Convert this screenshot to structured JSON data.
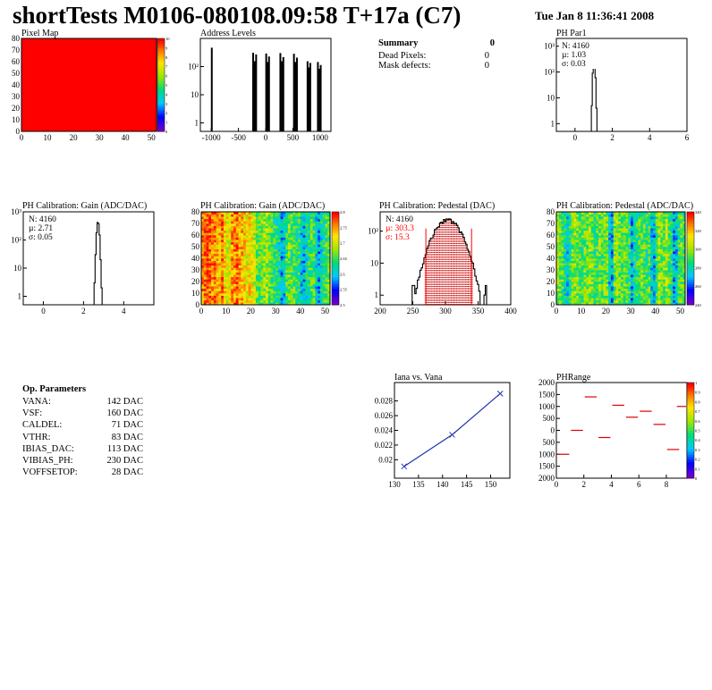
{
  "header": {
    "title": "shortTests M0106-080108.09:58 T+17a (C7)",
    "date": "Tue Jan  8 11:36:41 2008"
  },
  "colors": {
    "line": "#000000",
    "red": "#ff0000",
    "fit": "#2233aa",
    "fill": "#e8c8c8"
  },
  "summary": {
    "title": "Summary",
    "count": "0",
    "rows": [
      {
        "label": "Dead Pixels:",
        "value": "0"
      },
      {
        "label": "Mask defects:",
        "value": "0"
      }
    ]
  },
  "op_params": {
    "title": "Op. Parameters",
    "rows": [
      {
        "name": "VANA:",
        "value": "142 DAC"
      },
      {
        "name": "VSF:",
        "value": "160 DAC"
      },
      {
        "name": "CALDEL:",
        "value": "71 DAC"
      },
      {
        "name": "VTHR:",
        "value": "83 DAC"
      },
      {
        "name": "IBIAS_DAC:",
        "value": "113 DAC"
      },
      {
        "name": "VIBIAS_PH:",
        "value": "230 DAC"
      },
      {
        "name": "VOFFSETOP:",
        "value": "28 DAC"
      }
    ]
  },
  "chart_data": [
    {
      "id": "pixel_map",
      "type": "heatmap",
      "title": "Pixel Map",
      "xlim": [
        0,
        52
      ],
      "ylim": [
        0,
        80
      ],
      "xticks": [
        0,
        10,
        20,
        30,
        40,
        50
      ],
      "xtick_labels": [
        "0",
        "10",
        "20",
        "30",
        "40",
        "50"
      ],
      "yticks": [
        0,
        10,
        20,
        30,
        40,
        50,
        60,
        70,
        80
      ],
      "ytick_labels": [
        "0",
        "10",
        "20",
        "30",
        "40",
        "50",
        "60",
        "70",
        "80"
      ],
      "zlim": [
        0,
        10
      ],
      "ztick_labels": [
        "0",
        "1",
        "2",
        "3",
        "4",
        "5",
        "6",
        "7",
        "8",
        "9",
        "10"
      ],
      "uniform_value": 10,
      "palette": "rainbow"
    },
    {
      "id": "address_levels",
      "type": "bar",
      "title": "Address Levels",
      "xlim": [
        -1200,
        1200
      ],
      "log_y": true,
      "ylim": [
        0.5,
        1000
      ],
      "xticks": [
        -1000,
        -500,
        0,
        500,
        1000
      ],
      "xtick_labels": [
        "-1000",
        "-500",
        "0",
        "500",
        "1000"
      ],
      "yticks": [
        1,
        10,
        100
      ],
      "ytick_labels": [
        "1",
        "10",
        "10²"
      ],
      "peaks": [
        {
          "x": -990,
          "y": 450
        },
        {
          "x": -230,
          "y": 300
        },
        {
          "x": -200,
          "y": 150
        },
        {
          "x": -175,
          "y": 260
        },
        {
          "x": 10,
          "y": 280
        },
        {
          "x": 40,
          "y": 140
        },
        {
          "x": 62,
          "y": 220
        },
        {
          "x": 270,
          "y": 290
        },
        {
          "x": 300,
          "y": 150
        },
        {
          "x": 325,
          "y": 210
        },
        {
          "x": 520,
          "y": 275
        },
        {
          "x": 550,
          "y": 140
        },
        {
          "x": 575,
          "y": 200
        },
        {
          "x": 770,
          "y": 150
        },
        {
          "x": 795,
          "y": 90
        },
        {
          "x": 820,
          "y": 130
        },
        {
          "x": 960,
          "y": 140
        },
        {
          "x": 990,
          "y": 80
        },
        {
          "x": 1012,
          "y": 110
        }
      ]
    },
    {
      "id": "ph_par1",
      "type": "bar",
      "title": "PH Par1",
      "xlim": [
        -1,
        6
      ],
      "log_y": true,
      "ylim": [
        0.5,
        2000
      ],
      "xticks": [
        0,
        2,
        4,
        6
      ],
      "xtick_labels": [
        "0",
        "2",
        "4",
        "6"
      ],
      "yticks": [
        1,
        10,
        100,
        1000
      ],
      "ytick_labels": [
        "1",
        "10",
        "10²",
        "10³"
      ],
      "stats": [
        "N: 4160",
        "µ: 1.03",
        "σ: 0.03"
      ],
      "bins": [
        {
          "x": 0.9,
          "y": 5
        },
        {
          "x": 0.95,
          "y": 90
        },
        {
          "x": 1.0,
          "y": 800
        },
        {
          "x": 1.05,
          "y": 700
        },
        {
          "x": 1.1,
          "y": 60
        },
        {
          "x": 1.15,
          "y": 4
        }
      ]
    },
    {
      "id": "gain_hist",
      "type": "bar",
      "title": "PH Calibration: Gain (ADC/DAC)",
      "xlim": [
        -1,
        5.5
      ],
      "log_y": true,
      "ylim": [
        0.5,
        1000
      ],
      "xticks": [
        0,
        2,
        4
      ],
      "xtick_labels": [
        "0",
        "2",
        "4"
      ],
      "yticks": [
        1,
        10,
        100,
        1000
      ],
      "ytick_labels": [
        "1",
        "10",
        "10²",
        "10³"
      ],
      "stats": [
        "N: 4160",
        "µ: 2.71",
        "σ: 0.05"
      ],
      "bins": [
        {
          "x": 2.55,
          "y": 3
        },
        {
          "x": 2.6,
          "y": 30
        },
        {
          "x": 2.65,
          "y": 180
        },
        {
          "x": 2.7,
          "y": 420
        },
        {
          "x": 2.75,
          "y": 380
        },
        {
          "x": 2.8,
          "y": 150
        },
        {
          "x": 2.85,
          "y": 20
        },
        {
          "x": 2.9,
          "y": 2
        }
      ]
    },
    {
      "id": "gain_map",
      "type": "heatmap",
      "title": "PH Calibration: Gain (ADC/DAC)",
      "xlim": [
        0,
        52
      ],
      "ylim": [
        0,
        80
      ],
      "xticks": [
        0,
        10,
        20,
        30,
        40,
        50
      ],
      "xtick_labels": [
        "0",
        "10",
        "20",
        "30",
        "40",
        "50"
      ],
      "yticks": [
        0,
        10,
        20,
        30,
        40,
        50,
        60,
        70,
        80
      ],
      "ytick_labels": [
        "0",
        "10",
        "20",
        "30",
        "40",
        "50",
        "60",
        "70",
        "80"
      ],
      "zlim": [
        2.5,
        2.85
      ],
      "ztick_labels": [
        "2.5",
        "2.55",
        "2.6",
        "2.65",
        "2.7",
        "2.75",
        "2.8"
      ],
      "column_levels": [
        0.85,
        0.9,
        0.95,
        0.9,
        0.85,
        0.9,
        0.8,
        0.8,
        0.9,
        0.75,
        0.7,
        0.7,
        0.85,
        0.85,
        0.9,
        0.8,
        0.8,
        0.75,
        0.7,
        0.75,
        0.7,
        0.65,
        0.55,
        0.5,
        0.55,
        0.6,
        0.6,
        0.55,
        0.5,
        0.45,
        0.45,
        0.4,
        0.3,
        0.35,
        0.5,
        0.55,
        0.5,
        0.5,
        0.45,
        0.45,
        0.35,
        0.3,
        0.4,
        0.45,
        0.5,
        0.5,
        0.35,
        0.3,
        0.4,
        0.45,
        0.5,
        0.55
      ]
    },
    {
      "id": "pedestal_hist",
      "type": "bar",
      "title": "PH Calibration: Pedestal (DAC)",
      "xlim": [
        200,
        400
      ],
      "log_y": true,
      "ylim": [
        0.5,
        400
      ],
      "xticks": [
        200,
        250,
        300,
        350,
        400
      ],
      "xtick_labels": [
        "200",
        "250",
        "300",
        "350",
        "400"
      ],
      "yticks": [
        1,
        10,
        100
      ],
      "ytick_labels": [
        "1",
        "10",
        "10²"
      ],
      "stats": [
        "N: 4160",
        "µ: 303.3",
        "σ: 15.3"
      ],
      "gauss": {
        "mean": 303.3,
        "sigma": 15.3,
        "n": 4160
      },
      "cut_lines": [
        270,
        340
      ]
    },
    {
      "id": "pedestal_map",
      "type": "heatmap",
      "title": "PH Calibration: Pedestal (ADC/DAC)",
      "xlim": [
        0,
        52
      ],
      "ylim": [
        0,
        80
      ],
      "xticks": [
        0,
        10,
        20,
        30,
        40,
        50
      ],
      "xtick_labels": [
        "0",
        "10",
        "20",
        "30",
        "40",
        "50"
      ],
      "yticks": [
        0,
        10,
        20,
        30,
        40,
        50,
        60,
        70,
        80
      ],
      "ytick_labels": [
        "0",
        "10",
        "20",
        "30",
        "40",
        "50",
        "60",
        "70",
        "80"
      ],
      "zlim": [
        240,
        345
      ],
      "ztick_labels": [
        "240",
        "260",
        "280",
        "300",
        "320",
        "340"
      ],
      "column_levels": [
        0.6,
        0.55,
        0.5,
        0.4,
        0.35,
        0.45,
        0.55,
        0.6,
        0.55,
        0.5,
        0.5,
        0.55,
        0.55,
        0.6,
        0.55,
        0.45,
        0.5,
        0.55,
        0.5,
        0.55,
        0.55,
        0.35,
        0.3,
        0.55,
        0.6,
        0.55,
        0.5,
        0.55,
        0.5,
        0.45,
        0.3,
        0.4,
        0.45,
        0.5,
        0.55,
        0.5,
        0.45,
        0.5,
        0.35,
        0.3,
        0.5,
        0.6,
        0.55,
        0.55,
        0.6,
        0.5,
        0.45,
        0.3,
        0.35,
        0.5,
        0.55,
        0.5
      ]
    },
    {
      "id": "iana_vana",
      "type": "line",
      "title": "Iana vs. Vana",
      "xlim": [
        130,
        154
      ],
      "ylim": [
        0.0175,
        0.0305
      ],
      "xticks": [
        130,
        135,
        140,
        145,
        150
      ],
      "xtick_labels": [
        "130",
        "135",
        "140",
        "145",
        "150"
      ],
      "yticks": [
        0.02,
        0.022,
        0.024,
        0.026,
        0.028
      ],
      "ytick_labels": [
        "0.02",
        "0.022",
        "0.024",
        "0.026",
        "0.028"
      ],
      "x": [
        132,
        142,
        152
      ],
      "y": [
        0.0191,
        0.0234,
        0.029
      ]
    },
    {
      "id": "ph_range",
      "type": "scatter",
      "title": "PHRange",
      "xlim": [
        0,
        9.5
      ],
      "ylim": [
        -2000,
        2000
      ],
      "xticks": [
        0,
        2,
        4,
        6,
        8
      ],
      "xtick_labels": [
        "0",
        "2",
        "4",
        "6",
        "8"
      ],
      "yticks": [
        -2000,
        -1500,
        -1000,
        -500,
        0,
        500,
        1000,
        1500,
        2000
      ],
      "ytick_labels": [
        "2000",
        "1500",
        "1000",
        "500",
        "0",
        "500",
        "1000",
        "1500",
        "2000"
      ],
      "zlim": [
        0,
        1
      ],
      "ztick_labels": [
        "0",
        "0.1",
        "0.2",
        "0.3",
        "0.4",
        "0.5",
        "0.6",
        "0.7",
        "0.8",
        "0.9",
        "1"
      ],
      "segments": [
        {
          "x": 0.5,
          "y": -1000
        },
        {
          "x": 1.5,
          "y": 0
        },
        {
          "x": 2.5,
          "y": 1400
        },
        {
          "x": 3.5,
          "y": -300
        },
        {
          "x": 4.5,
          "y": 1050
        },
        {
          "x": 5.5,
          "y": 550
        },
        {
          "x": 6.5,
          "y": 800
        },
        {
          "x": 7.5,
          "y": 250
        },
        {
          "x": 8.5,
          "y": -800
        },
        {
          "x": 9.2,
          "y": 1000
        }
      ]
    }
  ]
}
